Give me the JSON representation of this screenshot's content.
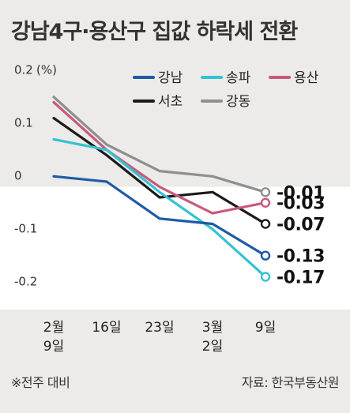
{
  "title": "강남4구·용산구 집값 하락세 전환",
  "footnote": "※전주 대비",
  "source": "자료: 한국부동산원",
  "chart_data": {
    "type": "line",
    "unit_label": "(%)",
    "categories": [
      "2월\n9일",
      "16일",
      "23일",
      "3월\n2일",
      "9일"
    ],
    "y_ticks": [
      {
        "value": 0.2,
        "label": "0.2"
      },
      {
        "value": 0.1,
        "label": "0.1"
      },
      {
        "value": 0,
        "label": "0"
      },
      {
        "value": -0.1,
        "label": "-0.1"
      },
      {
        "value": -0.2,
        "label": "-0.2"
      }
    ],
    "ylim": [
      -0.22,
      0.21
    ],
    "legend_position": "top-right",
    "series": [
      {
        "name": "강남",
        "color": "#1f5aa6",
        "values": [
          0.02,
          0.01,
          -0.06,
          -0.07,
          -0.13
        ],
        "end_label": "-0.13"
      },
      {
        "name": "송파",
        "color": "#35c2d3",
        "values": [
          0.09,
          0.07,
          -0.01,
          -0.08,
          -0.17
        ],
        "end_label": "-0.17"
      },
      {
        "name": "용산",
        "color": "#c85a7c",
        "values": [
          0.16,
          0.07,
          0.0,
          -0.05,
          -0.03
        ],
        "end_label": "-0.03"
      },
      {
        "name": "서초",
        "color": "#1a1a1a",
        "values": [
          0.13,
          0.06,
          -0.02,
          -0.01,
          -0.07
        ],
        "end_label": "-0.07"
      },
      {
        "name": "강동",
        "color": "#8f8f8f",
        "values": [
          0.17,
          0.08,
          0.03,
          0.02,
          -0.01
        ],
        "end_label": "-0.01"
      }
    ]
  }
}
